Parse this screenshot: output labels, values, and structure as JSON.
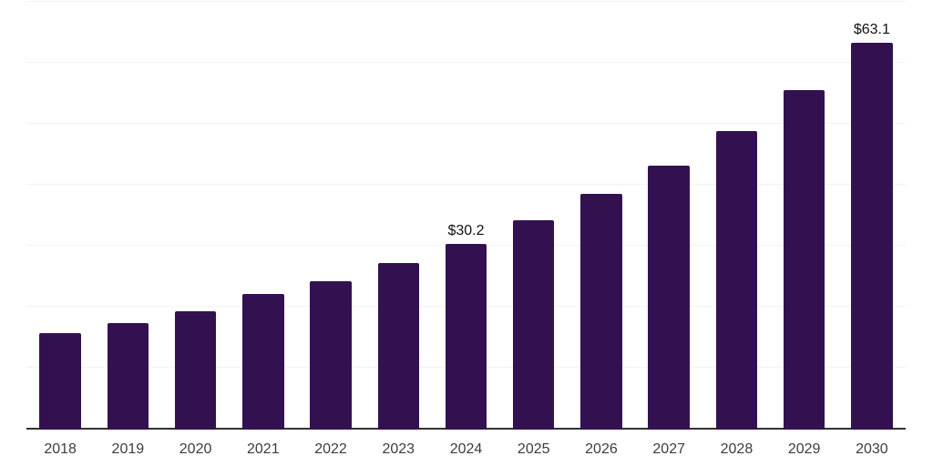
{
  "chart_data": {
    "type": "bar",
    "title": "",
    "xlabel": "",
    "ylabel": "",
    "categories": [
      "2018",
      "2019",
      "2020",
      "2021",
      "2022",
      "2023",
      "2024",
      "2025",
      "2026",
      "2027",
      "2028",
      "2029",
      "2030"
    ],
    "values": [
      15.5,
      17.2,
      19.1,
      21.9,
      24.1,
      27.0,
      30.2,
      34.0,
      38.4,
      43.0,
      48.6,
      55.4,
      63.1
    ],
    "value_labels": {
      "2024": "$30.2",
      "2030": "$63.1"
    },
    "ylim": [
      0,
      70
    ],
    "gridline_step": 10,
    "grid": true,
    "legend": "none",
    "colors": {
      "bar": "#331151",
      "axis_line": "#333333",
      "gridline": "#f2f2f2",
      "tick_label": "#3d3d3d",
      "value_label": "#111111",
      "background": "#ffffff"
    }
  }
}
